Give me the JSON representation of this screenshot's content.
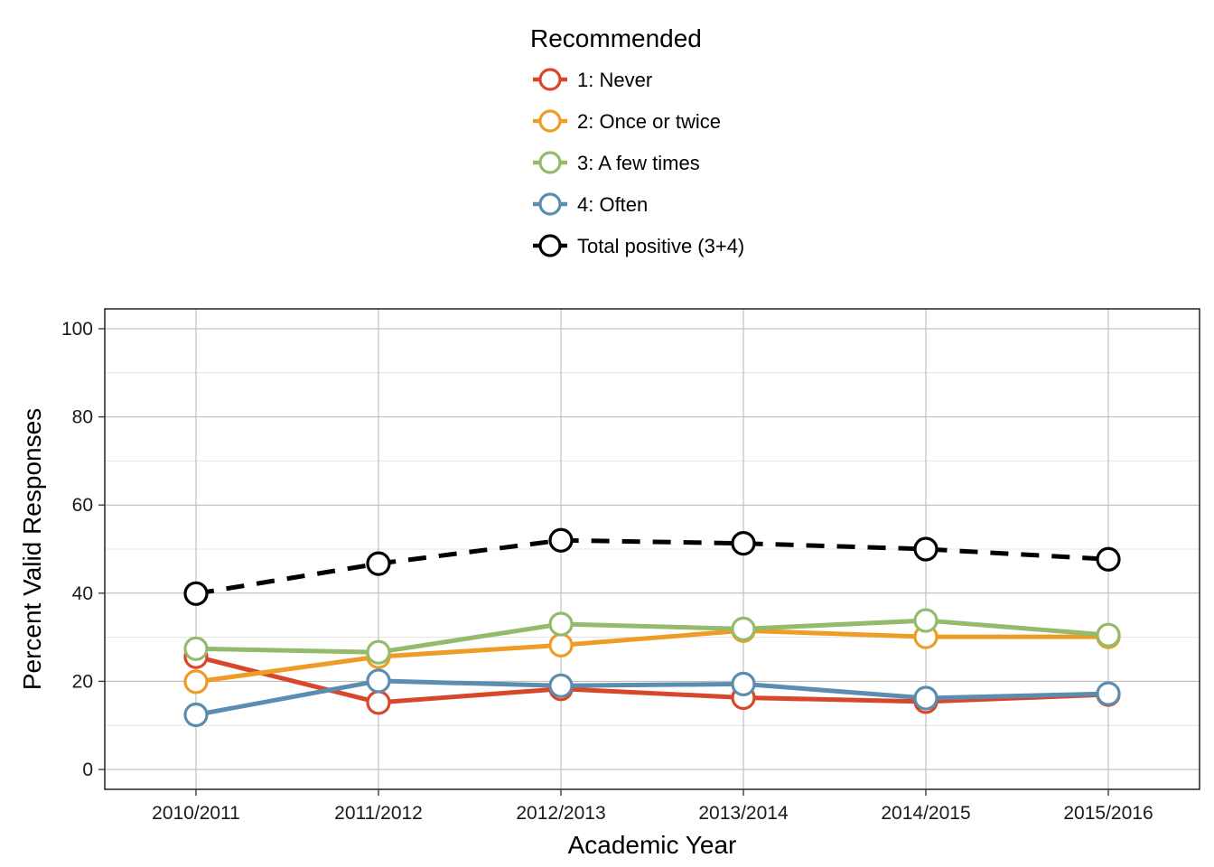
{
  "chart_data": {
    "type": "line",
    "xlabel": "Academic Year",
    "ylabel": "Percent Valid Responses",
    "categories": [
      "2010/2011",
      "2011/2012",
      "2012/2013",
      "2013/2014",
      "2014/2015",
      "2015/2016"
    ],
    "ylim": [
      -4.5,
      104.5
    ],
    "yticks": [
      0,
      20,
      40,
      60,
      80,
      100
    ],
    "grid": true,
    "legend": {
      "title": "Recommended",
      "placement": "top-center"
    },
    "series": [
      {
        "name": "1: Never",
        "color": "#D9472B",
        "dashed": false,
        "values": [
          25.6,
          15.2,
          18.3,
          16.3,
          15.4,
          17.0
        ]
      },
      {
        "name": "2: Once or twice",
        "color": "#EE9C25",
        "dashed": false,
        "values": [
          19.9,
          25.6,
          28.2,
          31.5,
          30.1,
          30.1
        ]
      },
      {
        "name": "3: A few times",
        "color": "#94BA6C",
        "dashed": false,
        "values": [
          27.4,
          26.6,
          33.0,
          31.9,
          33.8,
          30.5
        ]
      },
      {
        "name": "4: Often",
        "color": "#5A8DB0",
        "dashed": false,
        "values": [
          12.4,
          20.1,
          19.0,
          19.4,
          16.2,
          17.2
        ]
      },
      {
        "name": "Total positive (3+4)",
        "color": "#000000",
        "dashed": true,
        "values": [
          39.9,
          46.7,
          52.0,
          51.3,
          50.0,
          47.7
        ]
      }
    ]
  }
}
